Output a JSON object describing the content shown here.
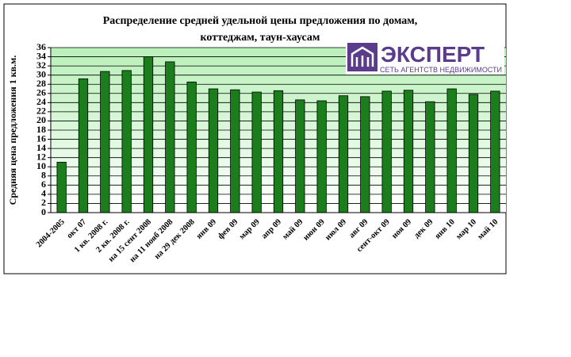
{
  "chart_data": {
    "type": "bar",
    "title": [
      "Распределение средней удельной цены предложения по домам,",
      "коттеджам, таун-хаусам"
    ],
    "y_label": "Средняя цена предложения 1 кв.м.",
    "logo": {
      "name": "ЭКСПЕРТ",
      "tagline": "СЕТЬ АГЕНТСТВ НЕДВИЖИМОСТИ"
    },
    "categories": [
      "2004-2005",
      "окт 07",
      "1 кв. 2008 г.",
      "2 кв. 2008 г.",
      "на 15 сент 2008",
      "на 11 нояб 2008",
      "на 29 дек 2008",
      "янв 09",
      "фев 09",
      "мар 09",
      "апр 09",
      "май 09",
      "июн 09",
      "июл 09",
      "авг 09",
      "сент-окт 09",
      "ноя 09",
      "дек 09",
      "янв 10",
      "мар 10",
      "май 10"
    ],
    "values": [
      11,
      29.2,
      30.8,
      31,
      34,
      32.9,
      28.5,
      27,
      26.8,
      26.3,
      26.6,
      24.6,
      24.4,
      25.5,
      25.3,
      26.5,
      26.7,
      24.2,
      27,
      25.8,
      26.5
    ],
    "color": "#1b7d1b",
    "ylim": [
      0,
      36
    ],
    "yticks": [
      0,
      2,
      4,
      6,
      8,
      10,
      12,
      14,
      16,
      18,
      20,
      22,
      24,
      26,
      28,
      30,
      32,
      34,
      36
    ],
    "grid": true
  }
}
